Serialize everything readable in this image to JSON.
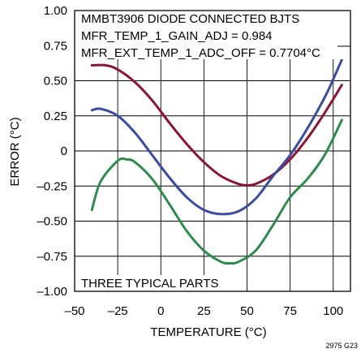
{
  "chart_data": {
    "type": "line",
    "xlabel": "TEMPERATURE (°C)",
    "ylabel": "ERROR (°C)",
    "xlim": [
      -50,
      110
    ],
    "ylim": [
      -1.0,
      1.0
    ],
    "x_ticks": [
      "–50",
      "–25",
      "0",
      "25",
      "50",
      "75",
      "100"
    ],
    "x_tick_values": [
      -50,
      -25,
      0,
      25,
      50,
      75,
      100
    ],
    "y_ticks": [
      "1.00",
      "0.75",
      "0.50",
      "0.25",
      "0",
      "–0.25",
      "–0.50",
      "–0.75",
      "–1.00"
    ],
    "y_tick_values": [
      1.0,
      0.75,
      0.5,
      0.25,
      0,
      -0.25,
      -0.5,
      -0.75,
      -1.0
    ],
    "grid": true,
    "annotations": {
      "title_line1": "MMBT3906 DIODE CONNECTED BJTS",
      "title_line2": "MFR_TEMP_1_GAIN_ADJ = 0.984",
      "title_line3": "MFR_EXT_TEMP_1_ADC_OFF = 0.7704°C",
      "bottom_label": "THREE TYPICAL PARTS"
    },
    "figure_id": "2975 G23",
    "series": [
      {
        "color": "#8b1538",
        "x": [
          -40,
          -32,
          -25,
          -15,
          -5,
          5,
          15,
          25,
          35,
          45,
          50,
          55,
          65,
          75,
          85,
          95,
          105
        ],
        "y": [
          0.61,
          0.61,
          0.58,
          0.49,
          0.36,
          0.2,
          0.05,
          -0.08,
          -0.18,
          -0.235,
          -0.245,
          -0.235,
          -0.17,
          -0.06,
          0.09,
          0.27,
          0.47
        ]
      },
      {
        "color": "#3b4ba0",
        "x": [
          -40,
          -35,
          -25,
          -15,
          -5,
          5,
          15,
          25,
          35,
          45,
          55,
          65,
          75,
          85,
          95,
          100,
          105
        ],
        "y": [
          0.29,
          0.3,
          0.25,
          0.13,
          -0.03,
          -0.19,
          -0.33,
          -0.42,
          -0.45,
          -0.43,
          -0.34,
          -0.18,
          -0.03,
          0.16,
          0.38,
          0.51,
          0.65
        ]
      },
      {
        "color": "#2e8a4f",
        "x": [
          -40,
          -35,
          -25,
          -20,
          -15,
          -5,
          5,
          15,
          25,
          35,
          40,
          45,
          55,
          65,
          75,
          85,
          95,
          105
        ],
        "y": [
          -0.42,
          -0.22,
          -0.07,
          -0.06,
          -0.08,
          -0.2,
          -0.38,
          -0.57,
          -0.71,
          -0.79,
          -0.8,
          -0.79,
          -0.71,
          -0.53,
          -0.33,
          -0.2,
          -0.03,
          0.22
        ]
      }
    ]
  }
}
